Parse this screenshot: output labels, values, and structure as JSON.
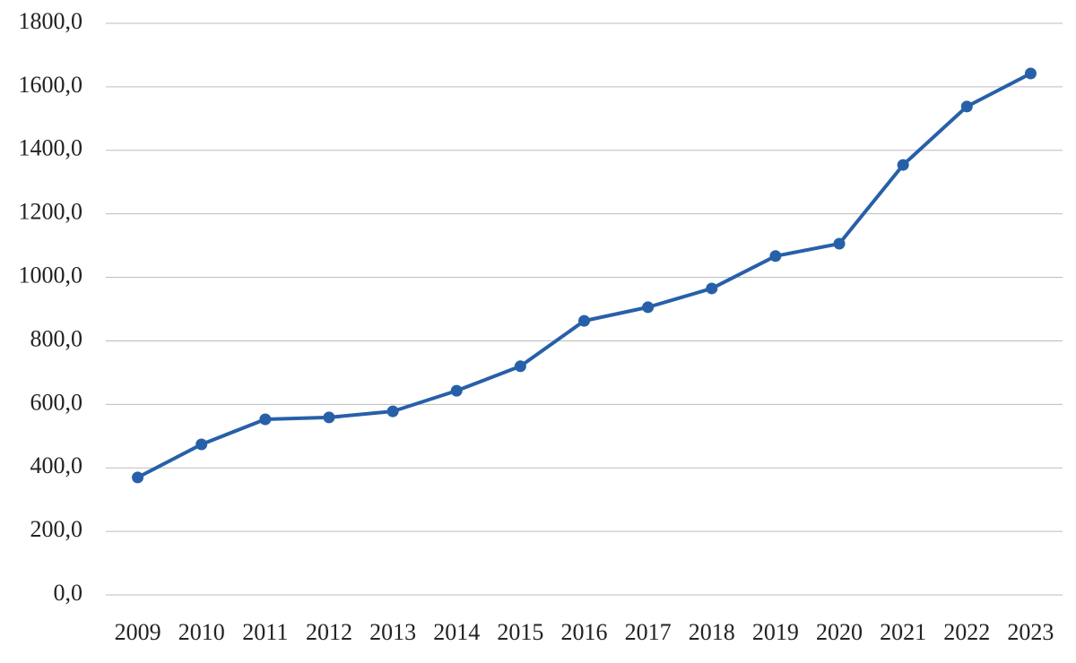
{
  "chart_data": {
    "type": "line",
    "categories": [
      "2009",
      "2010",
      "2011",
      "2012",
      "2013",
      "2014",
      "2015",
      "2016",
      "2017",
      "2018",
      "2019",
      "2020",
      "2021",
      "2022",
      "2023"
    ],
    "series": [
      {
        "color": "#2760a8",
        "values": [
          370,
          474,
          553,
          559,
          578,
          643,
          720,
          863,
          906,
          965,
          1067,
          1106,
          1354,
          1538,
          1642
        ]
      }
    ],
    "ylim": [
      0,
      1800
    ],
    "yticks": [
      {
        "value": 0,
        "label": "0,0"
      },
      {
        "value": 200,
        "label": "200,0"
      },
      {
        "value": 400,
        "label": "400,0"
      },
      {
        "value": 600,
        "label": "600,0"
      },
      {
        "value": 800,
        "label": "800,0"
      },
      {
        "value": 1000,
        "label": "1000,0"
      },
      {
        "value": 1200,
        "label": "1200,0"
      },
      {
        "value": 1400,
        "label": "1400,0"
      },
      {
        "value": 1600,
        "label": "1600,0"
      },
      {
        "value": 1800,
        "label": "1800,0"
      }
    ],
    "grid": true
  }
}
